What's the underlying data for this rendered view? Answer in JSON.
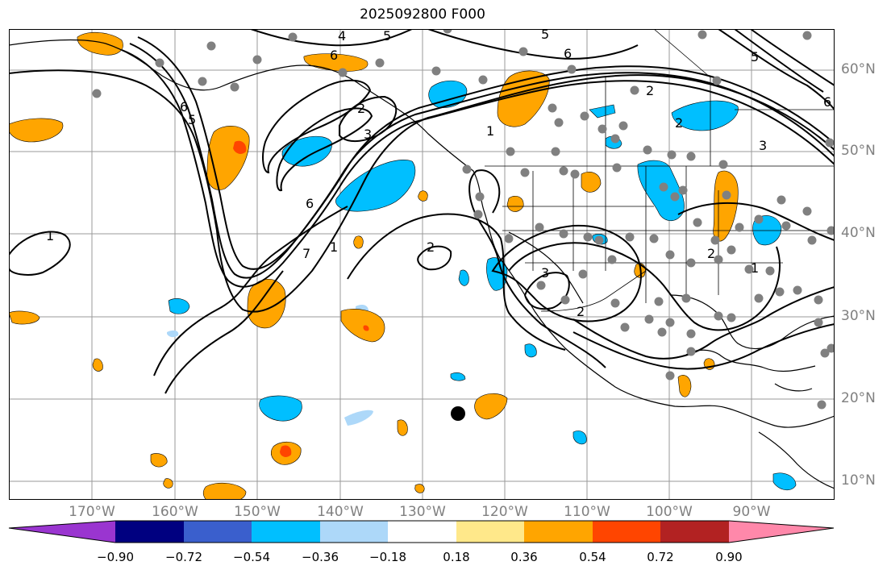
{
  "title": "2025092800 F000",
  "lon_labels": [
    "170°W",
    "160°W",
    "150°W",
    "140°W",
    "130°W",
    "120°W",
    "110°W",
    "100°W",
    "90°W"
  ],
  "lat_labels": [
    "60°N",
    "50°N",
    "40°N",
    "30°N",
    "20°N",
    "10°N"
  ],
  "colorbar": {
    "ticks": [
      "−0.90",
      "−0.72",
      "−0.54",
      "−0.36",
      "−0.18",
      "0.18",
      "0.36",
      "0.54",
      "0.72",
      "0.90"
    ],
    "colors": [
      "#9a35d0",
      "#000080",
      "#3a5fcd",
      "#00bfff",
      "#add8f9",
      "#ffffff",
      "#ffe88a",
      "#ffa500",
      "#ff4500",
      "#b22222",
      "#ff88aa"
    ]
  },
  "contour_labels": [
    "1",
    "2",
    "3",
    "4",
    "5",
    "6",
    "6",
    "5",
    "4",
    "3",
    "2",
    "1",
    "1",
    "2",
    "3",
    "6",
    "7",
    "1",
    "2",
    "3",
    "2",
    "1",
    "2",
    "1"
  ],
  "colors": {
    "positive": "#ffa500",
    "strong_positive": "#ff4500",
    "negative": "#00bfff",
    "station": "#808080"
  }
}
